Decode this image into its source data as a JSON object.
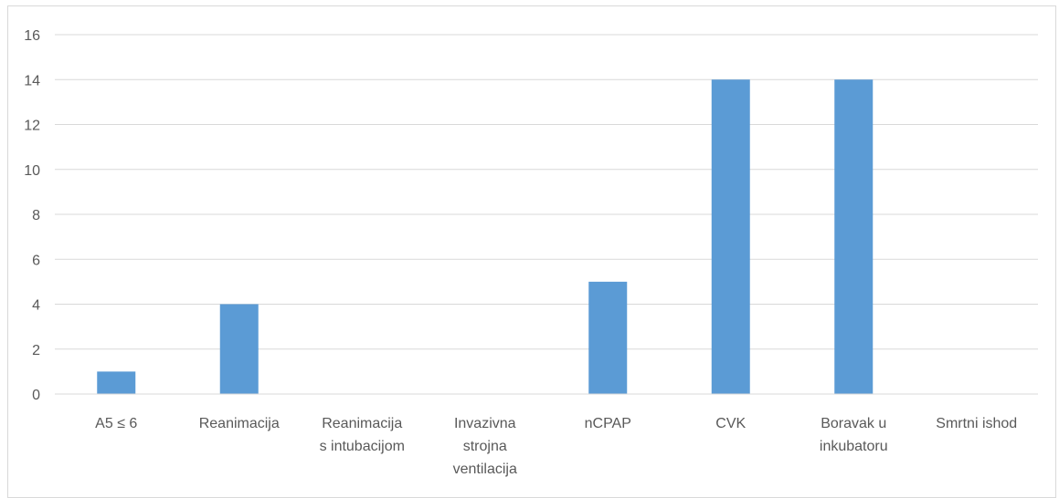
{
  "chart_data": {
    "type": "bar",
    "categories": [
      [
        "A5 ≤ 6"
      ],
      [
        "Reanimacija"
      ],
      [
        "Reanimacija",
        "s intubacijom"
      ],
      [
        "Invazivna",
        "strojna",
        "ventilacija"
      ],
      [
        "nCPAP"
      ],
      [
        "CVK"
      ],
      [
        "Boravak u",
        "inkubatoru"
      ],
      [
        "Smrtni ishod"
      ]
    ],
    "values": [
      1,
      4,
      0,
      0,
      5,
      14,
      14,
      0
    ],
    "ylim": [
      0,
      16
    ],
    "yticks": [
      "0",
      "2",
      "4",
      "6",
      "8",
      "10",
      "12",
      "14",
      "16"
    ],
    "grid": true,
    "bar_color": "#5b9bd5",
    "grid_color": "#d9d9d9",
    "title": "",
    "xlabel": "",
    "ylabel": ""
  }
}
